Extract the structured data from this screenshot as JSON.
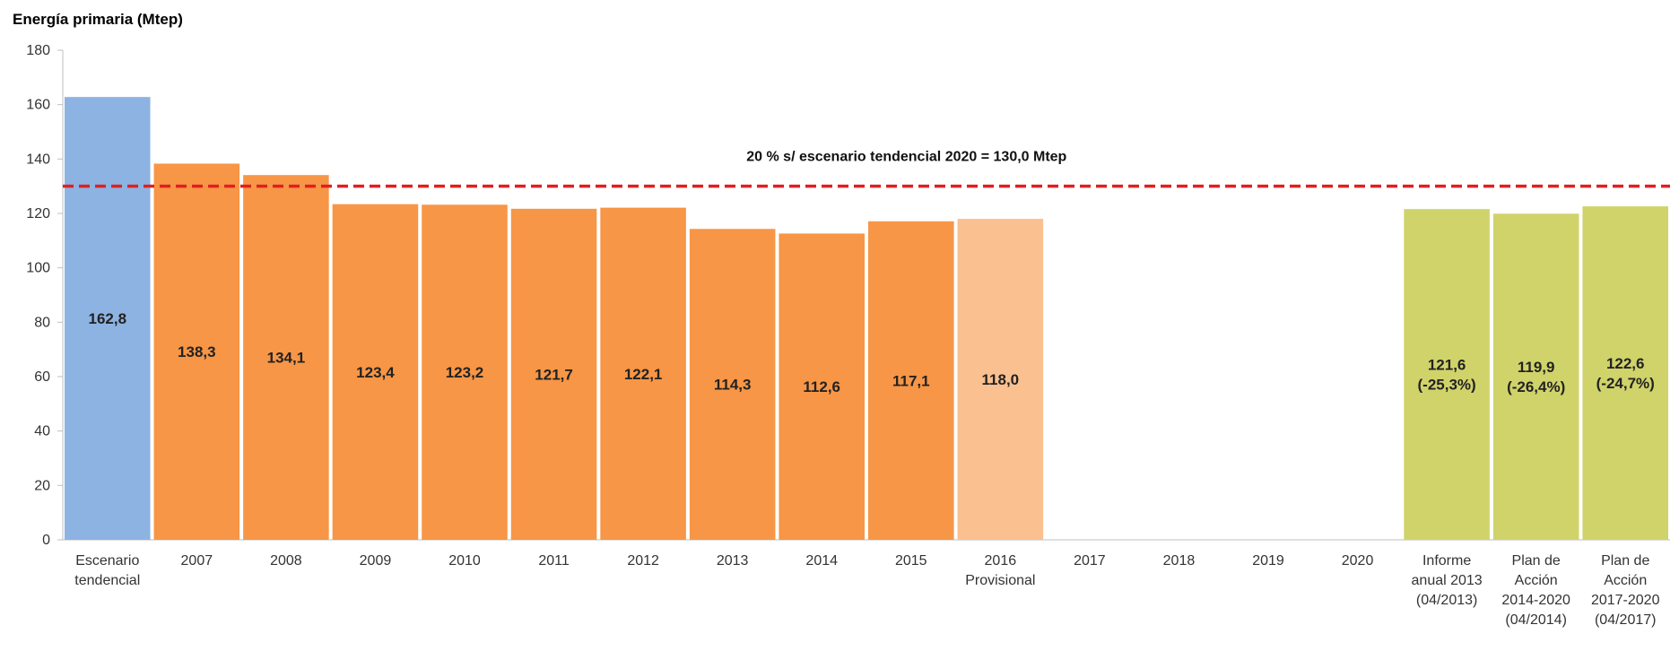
{
  "chart_data": {
    "type": "bar",
    "ylabel": "Energía primaria (Mtep)",
    "ylim": [
      0,
      180
    ],
    "yticks": [
      0,
      20,
      40,
      60,
      80,
      100,
      120,
      140,
      160,
      180
    ],
    "grid": false,
    "categories": [
      [
        "Escenario",
        "tendencial"
      ],
      [
        "2007"
      ],
      [
        "2008"
      ],
      [
        "2009"
      ],
      [
        "2010"
      ],
      [
        "2011"
      ],
      [
        "2012"
      ],
      [
        "2013"
      ],
      [
        "2014"
      ],
      [
        "2015"
      ],
      [
        "2016",
        "Provisional"
      ],
      [
        "2017"
      ],
      [
        "2018"
      ],
      [
        "2019"
      ],
      [
        "2020"
      ],
      [
        "Informe",
        "anual 2013",
        "(04/2013)"
      ],
      [
        "Plan de",
        "Acción",
        "2014-2020",
        "(04/2014)"
      ],
      [
        "Plan de",
        "Acción",
        "2017-2020",
        "(04/2017)"
      ]
    ],
    "values": [
      162.8,
      138.3,
      134.1,
      123.4,
      123.2,
      121.7,
      122.1,
      114.3,
      112.6,
      117.1,
      118.0,
      null,
      null,
      null,
      null,
      121.6,
      119.9,
      122.6
    ],
    "labels": [
      [
        "162,8"
      ],
      [
        "138,3"
      ],
      [
        "134,1"
      ],
      [
        "123,4"
      ],
      [
        "123,2"
      ],
      [
        "121,7"
      ],
      [
        "122,1"
      ],
      [
        "114,3"
      ],
      [
        "112,6"
      ],
      [
        "117,1"
      ],
      [
        "118,0"
      ],
      [],
      [],
      [],
      [],
      [
        "121,6",
        "(-25,3%)"
      ],
      [
        "119,9",
        "(-26,4%)"
      ],
      [
        "122,6",
        "(-24,7%)"
      ]
    ],
    "bar_colors": [
      "#8db3e2",
      "#f79646",
      "#f79646",
      "#f79646",
      "#f79646",
      "#f79646",
      "#f79646",
      "#f79646",
      "#f79646",
      "#f79646",
      "#fac090",
      null,
      null,
      null,
      null,
      "#d0d36a",
      "#d0d36a",
      "#d0d36a"
    ],
    "reference_line": {
      "value": 130.0,
      "label": "20 %  s/ escenario tendencial 2020 = 130,0 Mtep",
      "color": "#e02020"
    },
    "axis_color": "#bfbfbf"
  }
}
